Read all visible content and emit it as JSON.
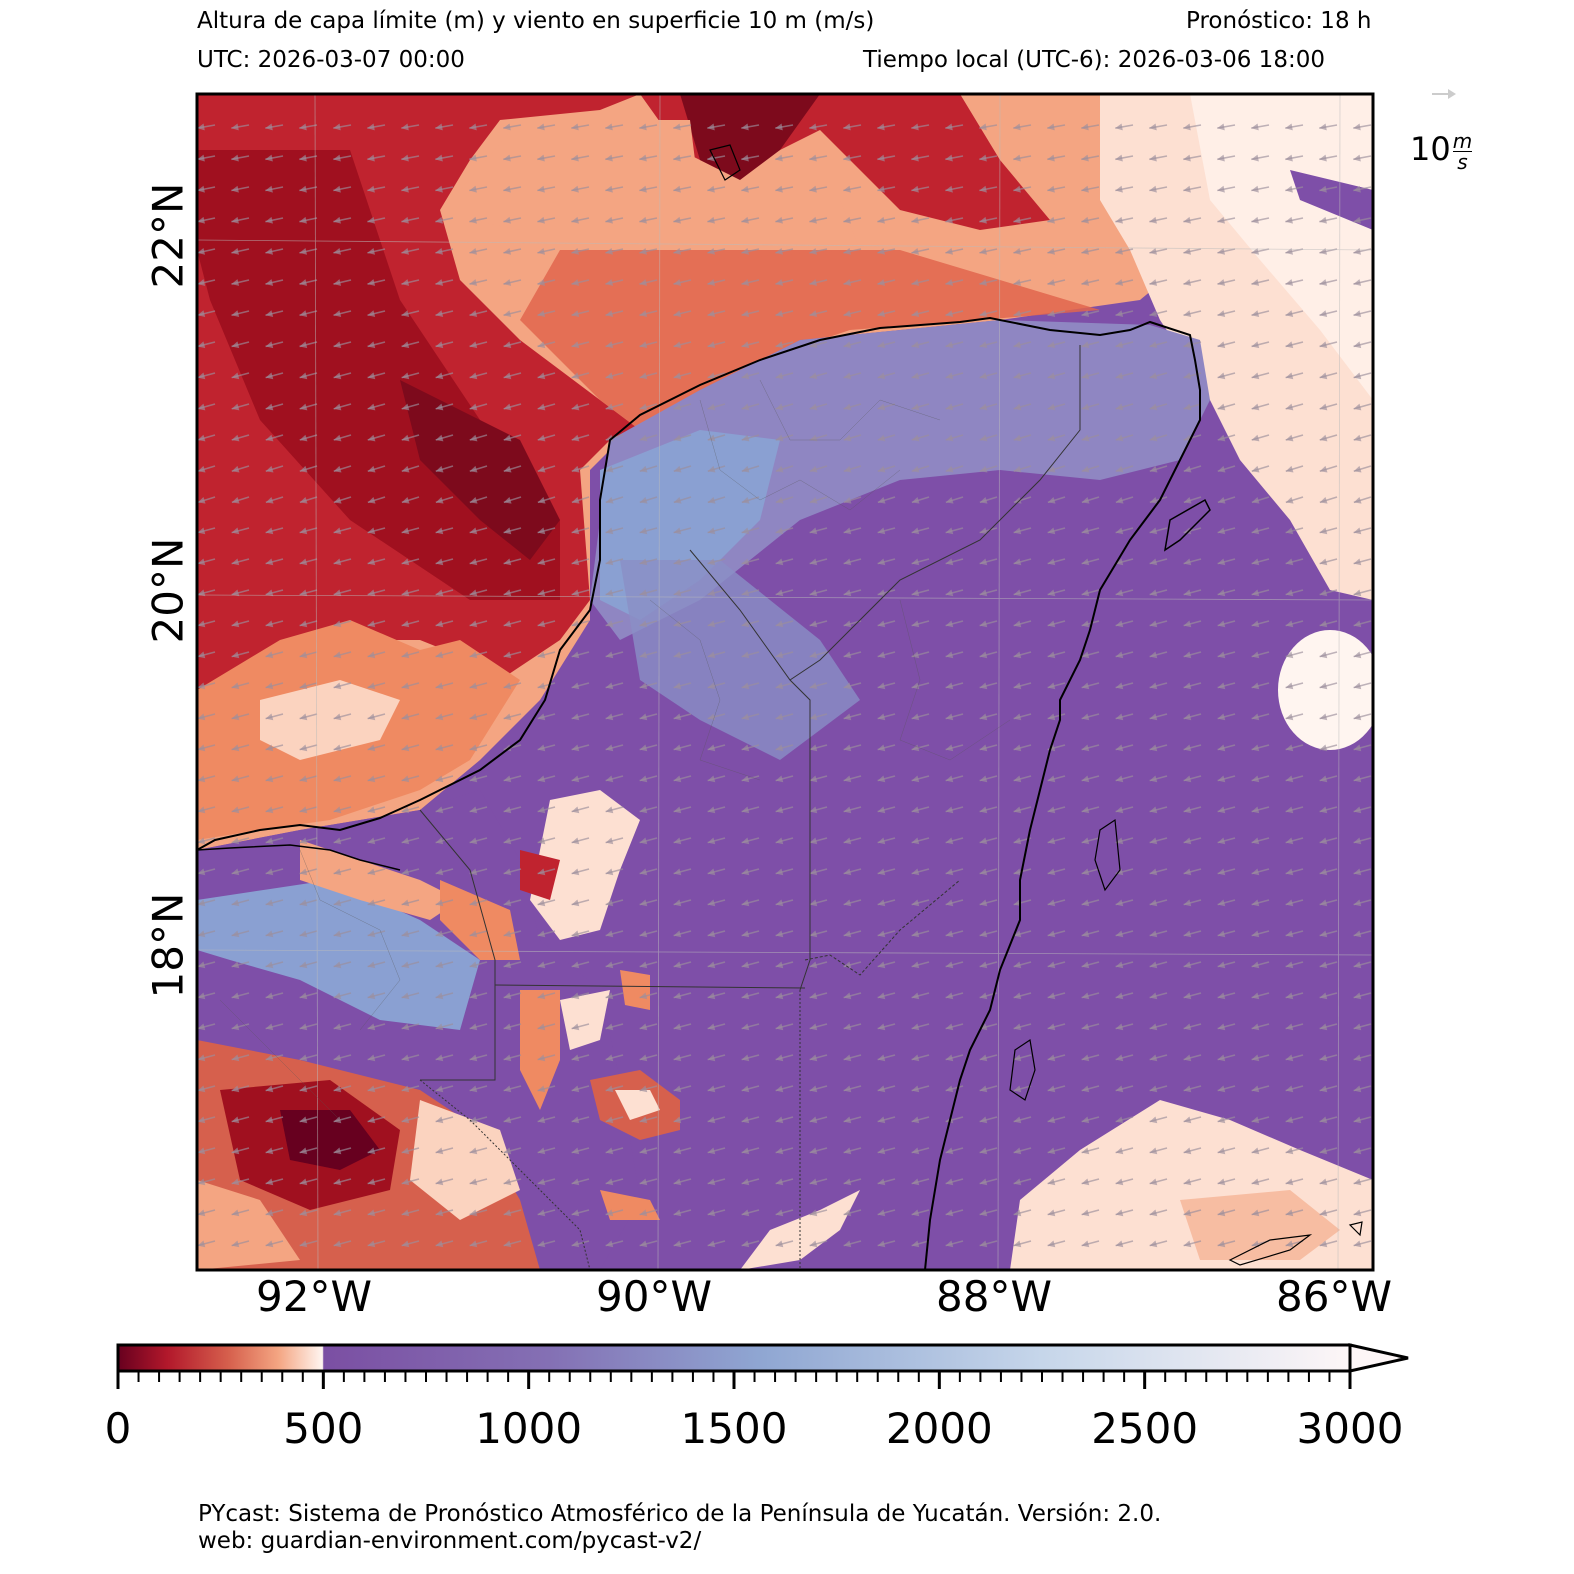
{
  "header": {
    "title": "Altura de capa límite (m) y viento en superficie 10 m (m/s)",
    "forecast": "Pronóstico: 18 h",
    "utc": "UTC:  2026-03-07 00:00",
    "local": "Tiempo local (UTC-6): 2026-03-06 18:00"
  },
  "map": {
    "lat_labels": [
      "22°N",
      "20°N",
      "18°N"
    ],
    "lon_labels": [
      "92°W",
      "90°W",
      "88°W",
      "86°W"
    ],
    "wind_key_label": "10",
    "wind_key_unit_num": "m",
    "wind_key_unit_den": "s",
    "colors": {
      "ocean_north": "#f4a582",
      "land": "#7e5aa8",
      "land_light": "#8a96c8",
      "red_dark": "#b2182b",
      "red_deep": "#67001f",
      "pale": "#fde0d2",
      "white": "#fff5f0"
    }
  },
  "colorbar": {
    "ticks": [
      "0",
      "500",
      "1000",
      "1500",
      "2000",
      "2500",
      "3000"
    ],
    "min": 0,
    "max": 3000
  },
  "footer": {
    "line1": "PYcast: Sistema de Pronóstico Atmosférico de la Península de Yucatán. Versión: 2.0.",
    "line2": "web: guardian-environment.com/pycast-v2/"
  }
}
